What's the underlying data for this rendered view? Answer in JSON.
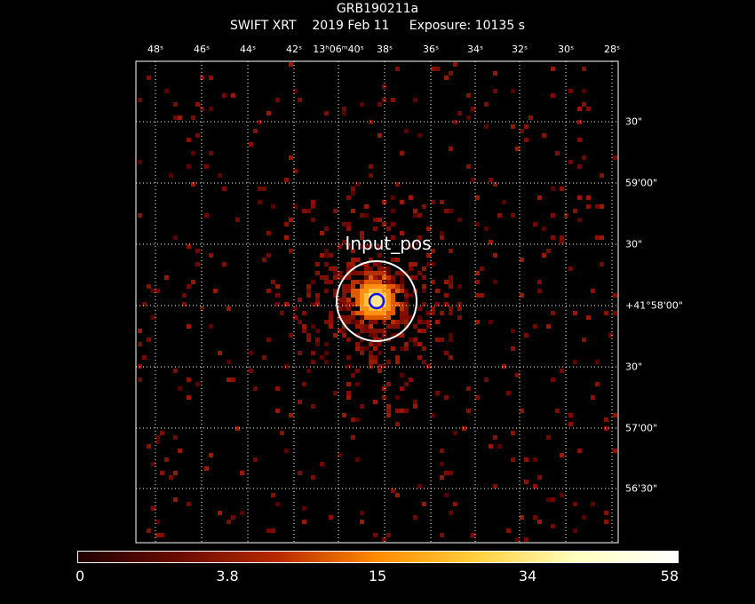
{
  "header": {
    "title": "GRB190211a",
    "subtitle": "SWIFT XRT    2019 Feb 11     Exposure: 10135 s"
  },
  "ra_ticks": [
    "48ˢ",
    "46ˢ",
    "44ˢ",
    "42ˢ",
    "13ʰ06ᵐ40ˢ",
    "38ˢ",
    "36ˢ",
    "34ˢ",
    "32ˢ",
    "30ˢ",
    "28ˢ"
  ],
  "dec_ticks": [
    "30\"",
    "59'00\"",
    "30\"",
    "+41°58'00\"",
    "30\"",
    "57'00\"",
    "56'30\""
  ],
  "source_label": "Input_pos",
  "colorbar": {
    "labels": [
      "0",
      "3.8",
      "15",
      "34",
      "58"
    ],
    "colors": [
      "#200000",
      "#6a0a00",
      "#b82a00",
      "#ff8c00",
      "#ffd040",
      "#ffffc0",
      "#ffffff"
    ]
  },
  "colors": {
    "grid": "#ffffff",
    "circle": "#ffffff",
    "marker": "#1010ff"
  }
}
